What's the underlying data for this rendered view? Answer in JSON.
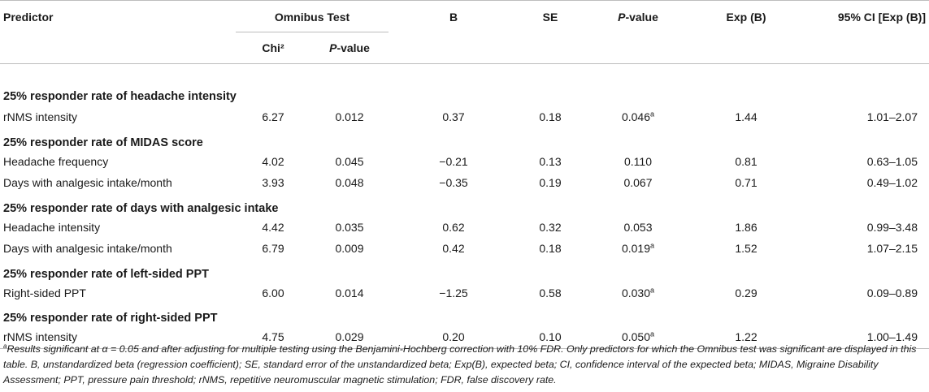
{
  "header": {
    "predictor": "Predictor",
    "omnibus_test": "Omnibus Test",
    "chi2": "Chi²",
    "p_italic": "P",
    "p_rest": "-value",
    "b": "B",
    "se": "SE",
    "exp_b": "Exp (B)",
    "ci": "95% CI [Exp (B)]"
  },
  "sections": [
    {
      "title": "25% responder rate of headache intensity",
      "rows": [
        {
          "predictor": "rNMS intensity",
          "chi2": "6.27",
          "omnibus_p": "0.012",
          "b": "0.37",
          "se": "0.18",
          "p": "0.046",
          "p_mark": "a",
          "exp_b": "1.44",
          "ci": "1.01–2.07"
        }
      ]
    },
    {
      "title": "25% responder rate of MIDAS score",
      "rows": [
        {
          "predictor": "Headache frequency",
          "chi2": "4.02",
          "omnibus_p": "0.045",
          "b": "−0.21",
          "se": "0.13",
          "p": "0.110",
          "p_mark": "",
          "exp_b": "0.81",
          "ci": "0.63–1.05"
        },
        {
          "predictor": "Days with analgesic intake/month",
          "chi2": "3.93",
          "omnibus_p": "0.048",
          "b": "−0.35",
          "se": "0.19",
          "p": "0.067",
          "p_mark": "",
          "exp_b": "0.71",
          "ci": "0.49–1.02"
        }
      ]
    },
    {
      "title": "25% responder rate of days with analgesic intake",
      "rows": [
        {
          "predictor": "Headache intensity",
          "chi2": "4.42",
          "omnibus_p": "0.035",
          "b": "0.62",
          "se": "0.32",
          "p": "0.053",
          "p_mark": "",
          "exp_b": "1.86",
          "ci": "0.99–3.48"
        },
        {
          "predictor": "Days with analgesic intake/month",
          "chi2": "6.79",
          "omnibus_p": "0.009",
          "b": "0.42",
          "se": "0.18",
          "p": "0.019",
          "p_mark": "a",
          "exp_b": "1.52",
          "ci": "1.07–2.15"
        }
      ]
    },
    {
      "title": "25% responder rate of left-sided PPT",
      "rows": [
        {
          "predictor": "Right-sided PPT",
          "chi2": "6.00",
          "omnibus_p": "0.014",
          "b": "−1.25",
          "se": "0.58",
          "p": "0.030",
          "p_mark": "a",
          "exp_b": "0.29",
          "ci": "0.09–0.89"
        }
      ]
    },
    {
      "title": "25% responder rate of right-sided PPT",
      "rows": [
        {
          "predictor": "rNMS intensity",
          "chi2": "4.75",
          "omnibus_p": "0.029",
          "b": "0.20",
          "se": "0.10",
          "p": "0.050",
          "p_mark": "a",
          "exp_b": "1.22",
          "ci": "1.00–1.49"
        }
      ]
    }
  ],
  "footnote": {
    "mark": "a",
    "text_1": "Results significant at α = 0.05 and after adjusting for multiple testing using the Benjamini-Hochberg correction with 10% FDR. Only predictors for which the Omnibus test was significant are displayed in this table. B, unstandardized beta (regression coefficient); SE, standard error of the unstandardized beta; Exp(B), expected beta; CI, confidence interval of the expected beta; MIDAS, Migraine Disability Assessment; PPT, pressure pain threshold; rNMS, repetitive neuromuscular magnetic stimulation; FDR, false discovery rate."
  }
}
